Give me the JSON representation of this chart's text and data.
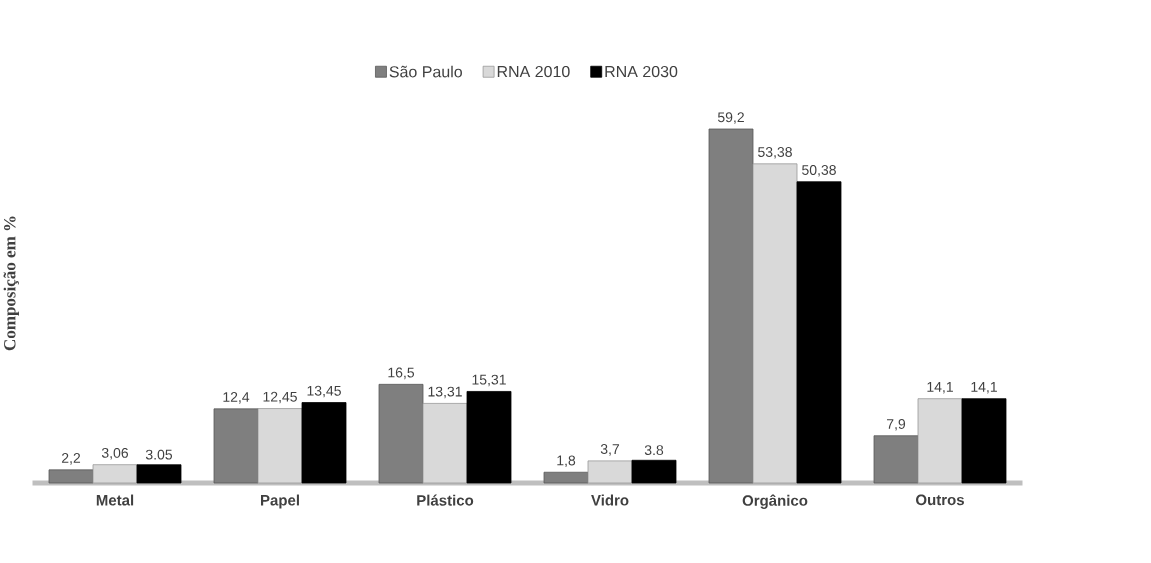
{
  "chart_data": {
    "type": "bar",
    "ylabel": "Composição em %",
    "categories": [
      "Metal",
      "Papel",
      "Plástico",
      "Vidro",
      "Orgânico",
      "Outros"
    ],
    "series": [
      {
        "name": "São Paulo",
        "color": "#7f7f7f",
        "values": [
          2.2,
          12.4,
          16.5,
          1.8,
          59.2,
          7.9
        ],
        "value_labels": [
          "2,2",
          "12,4",
          "16,5",
          "1,8",
          "59,2",
          "7,9"
        ]
      },
      {
        "name": "RNA 2010",
        "color": "#d9d9d9",
        "values": [
          3.06,
          12.45,
          13.31,
          3.7,
          53.38,
          14.1
        ],
        "value_labels": [
          "3,06",
          "12,45",
          "13,31",
          "3,7",
          "53,38",
          "14,1"
        ]
      },
      {
        "name": "RNA 2030",
        "color": "#000000",
        "values": [
          3.05,
          13.45,
          15.31,
          3.8,
          50.38,
          14.1
        ],
        "value_labels": [
          "3.05",
          "13,45",
          "15,31",
          "3.8",
          "50,38",
          "14,1"
        ]
      }
    ],
    "legend": "top",
    "grid": false
  }
}
